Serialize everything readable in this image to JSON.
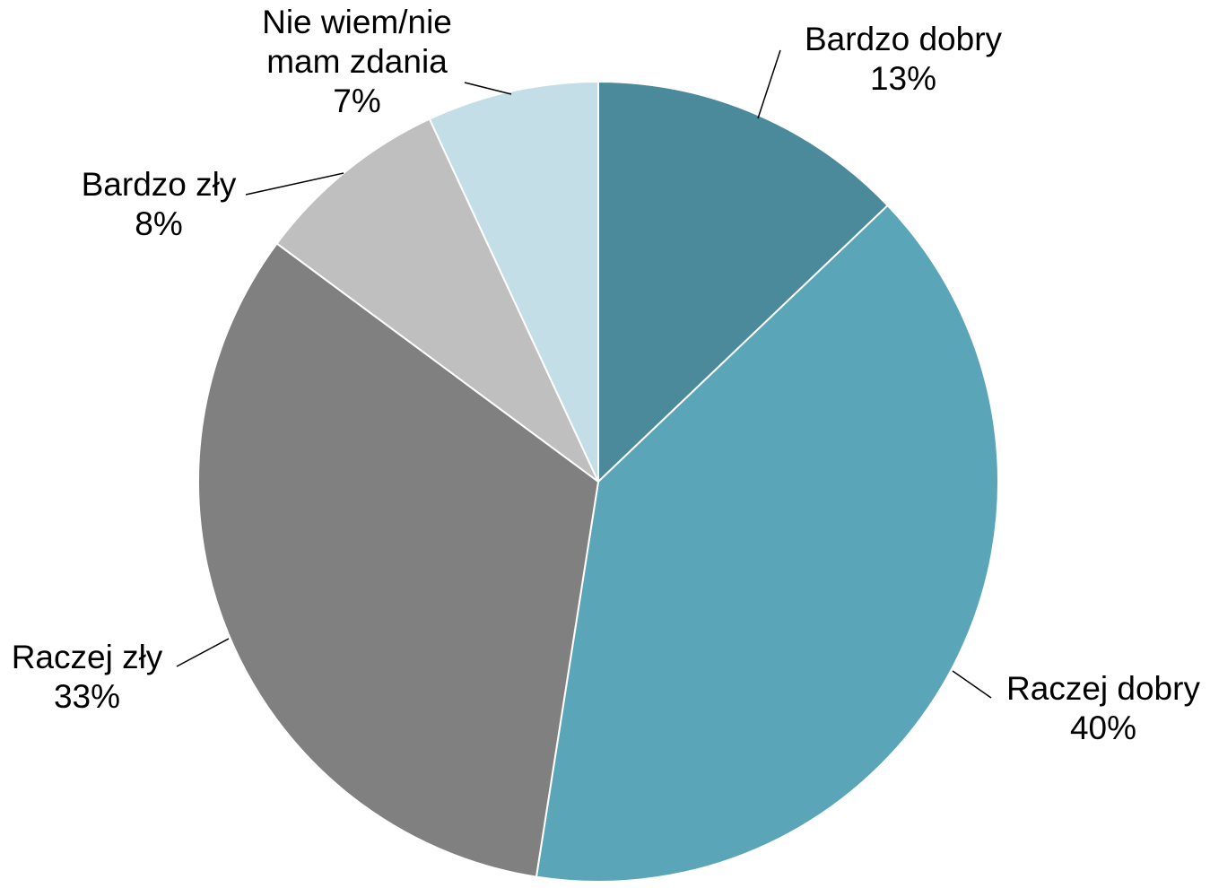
{
  "chart_data": {
    "type": "pie",
    "title": "",
    "start_angle_deg": 0,
    "direction": "clockwise",
    "slices": [
      {
        "label": "Bardzo dobry",
        "value": 13,
        "display": "13%",
        "color": "#4A8A9A"
      },
      {
        "label": "Raczej dobry",
        "value": 40,
        "display": "40%",
        "color": "#5BA5B9"
      },
      {
        "label": "Raczej zły",
        "value": 33,
        "display": "33%",
        "color": "#808080"
      },
      {
        "label": "Bardzo zły",
        "value": 8,
        "display": "8%",
        "color": "#BFBFBF"
      },
      {
        "label": "Nie wiem/nie mam zdania",
        "label_lines": [
          "Nie wiem/nie",
          "mam zdania"
        ],
        "value": 7,
        "display": "7%",
        "color": "#C3DEE6"
      }
    ],
    "legend": "none"
  }
}
